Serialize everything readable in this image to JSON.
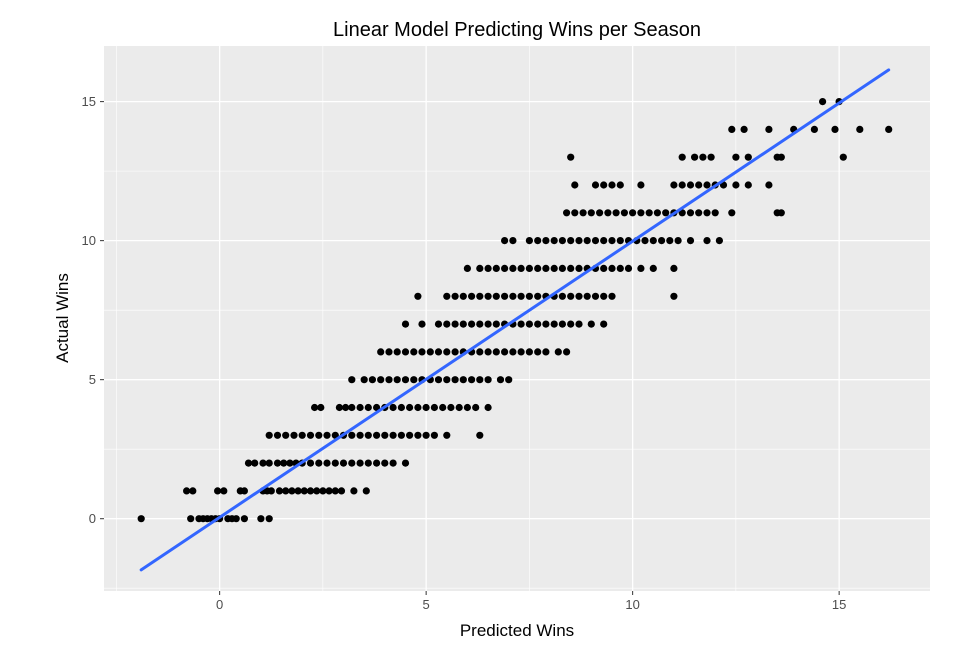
{
  "chart_data": {
    "type": "scatter",
    "title": "Linear Model Predicting Wins per Season",
    "xlabel": "Predicted Wins",
    "ylabel": "Actual Wins",
    "xlim": [
      -2.8,
      17.2
    ],
    "ylim": [
      -2.6,
      17.0
    ],
    "x_ticks": [
      0,
      5,
      10,
      15
    ],
    "y_ticks": [
      0,
      5,
      10,
      15
    ],
    "x_tick_labels": [
      "0",
      "5",
      "10",
      "15"
    ],
    "y_tick_labels": [
      "0",
      "5",
      "10",
      "15"
    ],
    "grid": true,
    "colors": {
      "panel": "#EBEBEB",
      "grid": "#FFFFFF",
      "points": "#000000",
      "fit_line": "#3366FF",
      "tick_text": "#4D4D4D"
    },
    "fit_line": {
      "x": [
        -1.9,
        16.2
      ],
      "y": [
        -1.84,
        16.14
      ]
    },
    "series": [
      {
        "points": [
          [
            -1.9,
            0
          ],
          [
            -0.7,
            0
          ],
          [
            -0.5,
            0
          ],
          [
            -0.4,
            0
          ],
          [
            -0.3,
            0
          ],
          [
            -0.2,
            0
          ],
          [
            -0.1,
            0
          ],
          [
            0.0,
            0
          ],
          [
            0.2,
            0
          ],
          [
            0.3,
            0
          ],
          [
            0.4,
            0
          ],
          [
            0.6,
            0
          ],
          [
            1.0,
            0
          ],
          [
            1.2,
            0
          ],
          [
            -0.8,
            1
          ],
          [
            -0.65,
            1
          ],
          [
            -0.05,
            1
          ],
          [
            0.1,
            1
          ],
          [
            0.5,
            1
          ],
          [
            0.6,
            1
          ],
          [
            1.05,
            1
          ],
          [
            1.15,
            1
          ],
          [
            1.25,
            1
          ],
          [
            1.45,
            1
          ],
          [
            1.6,
            1
          ],
          [
            1.75,
            1
          ],
          [
            1.9,
            1
          ],
          [
            2.05,
            1
          ],
          [
            2.2,
            1
          ],
          [
            2.35,
            1
          ],
          [
            2.5,
            1
          ],
          [
            2.65,
            1
          ],
          [
            2.8,
            1
          ],
          [
            2.95,
            1
          ],
          [
            3.25,
            1
          ],
          [
            3.55,
            1
          ],
          [
            0.7,
            2
          ],
          [
            0.85,
            2
          ],
          [
            1.05,
            2
          ],
          [
            1.2,
            2
          ],
          [
            1.4,
            2
          ],
          [
            1.55,
            2
          ],
          [
            1.7,
            2
          ],
          [
            1.85,
            2
          ],
          [
            2.0,
            2
          ],
          [
            2.2,
            2
          ],
          [
            2.4,
            2
          ],
          [
            2.6,
            2
          ],
          [
            2.8,
            2
          ],
          [
            3.0,
            2
          ],
          [
            3.2,
            2
          ],
          [
            3.4,
            2
          ],
          [
            3.6,
            2
          ],
          [
            3.8,
            2
          ],
          [
            4.0,
            2
          ],
          [
            4.2,
            2
          ],
          [
            4.5,
            2
          ],
          [
            1.2,
            3
          ],
          [
            1.4,
            3
          ],
          [
            1.6,
            3
          ],
          [
            1.8,
            3
          ],
          [
            2.0,
            3
          ],
          [
            2.2,
            3
          ],
          [
            2.4,
            3
          ],
          [
            2.6,
            3
          ],
          [
            2.8,
            3
          ],
          [
            3.0,
            3
          ],
          [
            3.2,
            3
          ],
          [
            3.4,
            3
          ],
          [
            3.6,
            3
          ],
          [
            3.8,
            3
          ],
          [
            4.0,
            3
          ],
          [
            4.2,
            3
          ],
          [
            4.4,
            3
          ],
          [
            4.6,
            3
          ],
          [
            4.8,
            3
          ],
          [
            5.0,
            3
          ],
          [
            5.2,
            3
          ],
          [
            5.5,
            3
          ],
          [
            6.3,
            3
          ],
          [
            2.3,
            4
          ],
          [
            2.45,
            4
          ],
          [
            2.9,
            4
          ],
          [
            3.05,
            4
          ],
          [
            3.2,
            4
          ],
          [
            3.4,
            4
          ],
          [
            3.6,
            4
          ],
          [
            3.8,
            4
          ],
          [
            4.0,
            4
          ],
          [
            4.2,
            4
          ],
          [
            4.4,
            4
          ],
          [
            4.6,
            4
          ],
          [
            4.8,
            4
          ],
          [
            5.0,
            4
          ],
          [
            5.2,
            4
          ],
          [
            5.4,
            4
          ],
          [
            5.6,
            4
          ],
          [
            5.8,
            4
          ],
          [
            6.0,
            4
          ],
          [
            6.2,
            4
          ],
          [
            6.5,
            4
          ],
          [
            3.2,
            5
          ],
          [
            3.5,
            5
          ],
          [
            3.7,
            5
          ],
          [
            3.9,
            5
          ],
          [
            4.1,
            5
          ],
          [
            4.3,
            5
          ],
          [
            4.5,
            5
          ],
          [
            4.7,
            5
          ],
          [
            4.9,
            5
          ],
          [
            5.1,
            5
          ],
          [
            5.3,
            5
          ],
          [
            5.5,
            5
          ],
          [
            5.7,
            5
          ],
          [
            5.9,
            5
          ],
          [
            6.1,
            5
          ],
          [
            6.3,
            5
          ],
          [
            6.5,
            5
          ],
          [
            6.8,
            5
          ],
          [
            7.0,
            5
          ],
          [
            3.9,
            6
          ],
          [
            4.1,
            6
          ],
          [
            4.3,
            6
          ],
          [
            4.5,
            6
          ],
          [
            4.7,
            6
          ],
          [
            4.9,
            6
          ],
          [
            5.1,
            6
          ],
          [
            5.3,
            6
          ],
          [
            5.5,
            6
          ],
          [
            5.7,
            6
          ],
          [
            5.9,
            6
          ],
          [
            6.1,
            6
          ],
          [
            6.3,
            6
          ],
          [
            6.5,
            6
          ],
          [
            6.7,
            6
          ],
          [
            6.9,
            6
          ],
          [
            7.1,
            6
          ],
          [
            7.3,
            6
          ],
          [
            7.5,
            6
          ],
          [
            7.7,
            6
          ],
          [
            7.9,
            6
          ],
          [
            8.2,
            6
          ],
          [
            8.4,
            6
          ],
          [
            4.5,
            7
          ],
          [
            4.9,
            7
          ],
          [
            5.3,
            7
          ],
          [
            5.5,
            7
          ],
          [
            5.7,
            7
          ],
          [
            5.9,
            7
          ],
          [
            6.1,
            7
          ],
          [
            6.3,
            7
          ],
          [
            6.5,
            7
          ],
          [
            6.7,
            7
          ],
          [
            6.9,
            7
          ],
          [
            7.1,
            7
          ],
          [
            7.3,
            7
          ],
          [
            7.5,
            7
          ],
          [
            7.7,
            7
          ],
          [
            7.9,
            7
          ],
          [
            8.1,
            7
          ],
          [
            8.3,
            7
          ],
          [
            8.5,
            7
          ],
          [
            8.7,
            7
          ],
          [
            9.0,
            7
          ],
          [
            9.3,
            7
          ],
          [
            4.8,
            8
          ],
          [
            5.5,
            8
          ],
          [
            5.7,
            8
          ],
          [
            5.9,
            8
          ],
          [
            6.1,
            8
          ],
          [
            6.3,
            8
          ],
          [
            6.5,
            8
          ],
          [
            6.7,
            8
          ],
          [
            6.9,
            8
          ],
          [
            7.1,
            8
          ],
          [
            7.3,
            8
          ],
          [
            7.5,
            8
          ],
          [
            7.7,
            8
          ],
          [
            7.9,
            8
          ],
          [
            8.1,
            8
          ],
          [
            8.3,
            8
          ],
          [
            8.5,
            8
          ],
          [
            8.7,
            8
          ],
          [
            8.9,
            8
          ],
          [
            9.1,
            8
          ],
          [
            9.3,
            8
          ],
          [
            9.5,
            8
          ],
          [
            11.0,
            8
          ],
          [
            6.0,
            9
          ],
          [
            6.3,
            9
          ],
          [
            6.5,
            9
          ],
          [
            6.7,
            9
          ],
          [
            6.9,
            9
          ],
          [
            7.1,
            9
          ],
          [
            7.3,
            9
          ],
          [
            7.5,
            9
          ],
          [
            7.7,
            9
          ],
          [
            7.9,
            9
          ],
          [
            8.1,
            9
          ],
          [
            8.3,
            9
          ],
          [
            8.5,
            9
          ],
          [
            8.7,
            9
          ],
          [
            8.9,
            9
          ],
          [
            9.1,
            9
          ],
          [
            9.3,
            9
          ],
          [
            9.5,
            9
          ],
          [
            9.7,
            9
          ],
          [
            9.9,
            9
          ],
          [
            10.2,
            9
          ],
          [
            10.5,
            9
          ],
          [
            11.0,
            9
          ],
          [
            6.9,
            10
          ],
          [
            7.1,
            10
          ],
          [
            7.5,
            10
          ],
          [
            7.7,
            10
          ],
          [
            7.9,
            10
          ],
          [
            8.1,
            10
          ],
          [
            8.3,
            10
          ],
          [
            8.5,
            10
          ],
          [
            8.7,
            10
          ],
          [
            8.9,
            10
          ],
          [
            9.1,
            10
          ],
          [
            9.3,
            10
          ],
          [
            9.5,
            10
          ],
          [
            9.7,
            10
          ],
          [
            9.9,
            10
          ],
          [
            10.1,
            10
          ],
          [
            10.3,
            10
          ],
          [
            10.5,
            10
          ],
          [
            10.7,
            10
          ],
          [
            10.9,
            10
          ],
          [
            11.1,
            10
          ],
          [
            11.4,
            10
          ],
          [
            11.8,
            10
          ],
          [
            12.1,
            10
          ],
          [
            8.4,
            11
          ],
          [
            8.6,
            11
          ],
          [
            8.8,
            11
          ],
          [
            9.0,
            11
          ],
          [
            9.2,
            11
          ],
          [
            9.4,
            11
          ],
          [
            9.6,
            11
          ],
          [
            9.8,
            11
          ],
          [
            10.0,
            11
          ],
          [
            10.2,
            11
          ],
          [
            10.4,
            11
          ],
          [
            10.6,
            11
          ],
          [
            10.8,
            11
          ],
          [
            11.0,
            11
          ],
          [
            11.2,
            11
          ],
          [
            11.4,
            11
          ],
          [
            11.6,
            11
          ],
          [
            11.8,
            11
          ],
          [
            12.0,
            11
          ],
          [
            12.4,
            11
          ],
          [
            13.5,
            11
          ],
          [
            13.6,
            11
          ],
          [
            8.6,
            12
          ],
          [
            9.1,
            12
          ],
          [
            9.3,
            12
          ],
          [
            9.5,
            12
          ],
          [
            9.7,
            12
          ],
          [
            10.2,
            12
          ],
          [
            11.0,
            12
          ],
          [
            11.2,
            12
          ],
          [
            11.4,
            12
          ],
          [
            11.6,
            12
          ],
          [
            11.8,
            12
          ],
          [
            12.0,
            12
          ],
          [
            12.2,
            12
          ],
          [
            12.5,
            12
          ],
          [
            12.8,
            12
          ],
          [
            13.3,
            12
          ],
          [
            8.5,
            13
          ],
          [
            11.2,
            13
          ],
          [
            11.5,
            13
          ],
          [
            11.7,
            13
          ],
          [
            11.9,
            13
          ],
          [
            12.5,
            13
          ],
          [
            12.8,
            13
          ],
          [
            13.5,
            13
          ],
          [
            13.6,
            13
          ],
          [
            15.1,
            13
          ],
          [
            12.4,
            14
          ],
          [
            12.7,
            14
          ],
          [
            13.3,
            14
          ],
          [
            13.9,
            14
          ],
          [
            14.4,
            14
          ],
          [
            14.9,
            14
          ],
          [
            15.5,
            14
          ],
          [
            16.2,
            14
          ],
          [
            14.6,
            15
          ],
          [
            15.0,
            15
          ]
        ]
      }
    ]
  }
}
